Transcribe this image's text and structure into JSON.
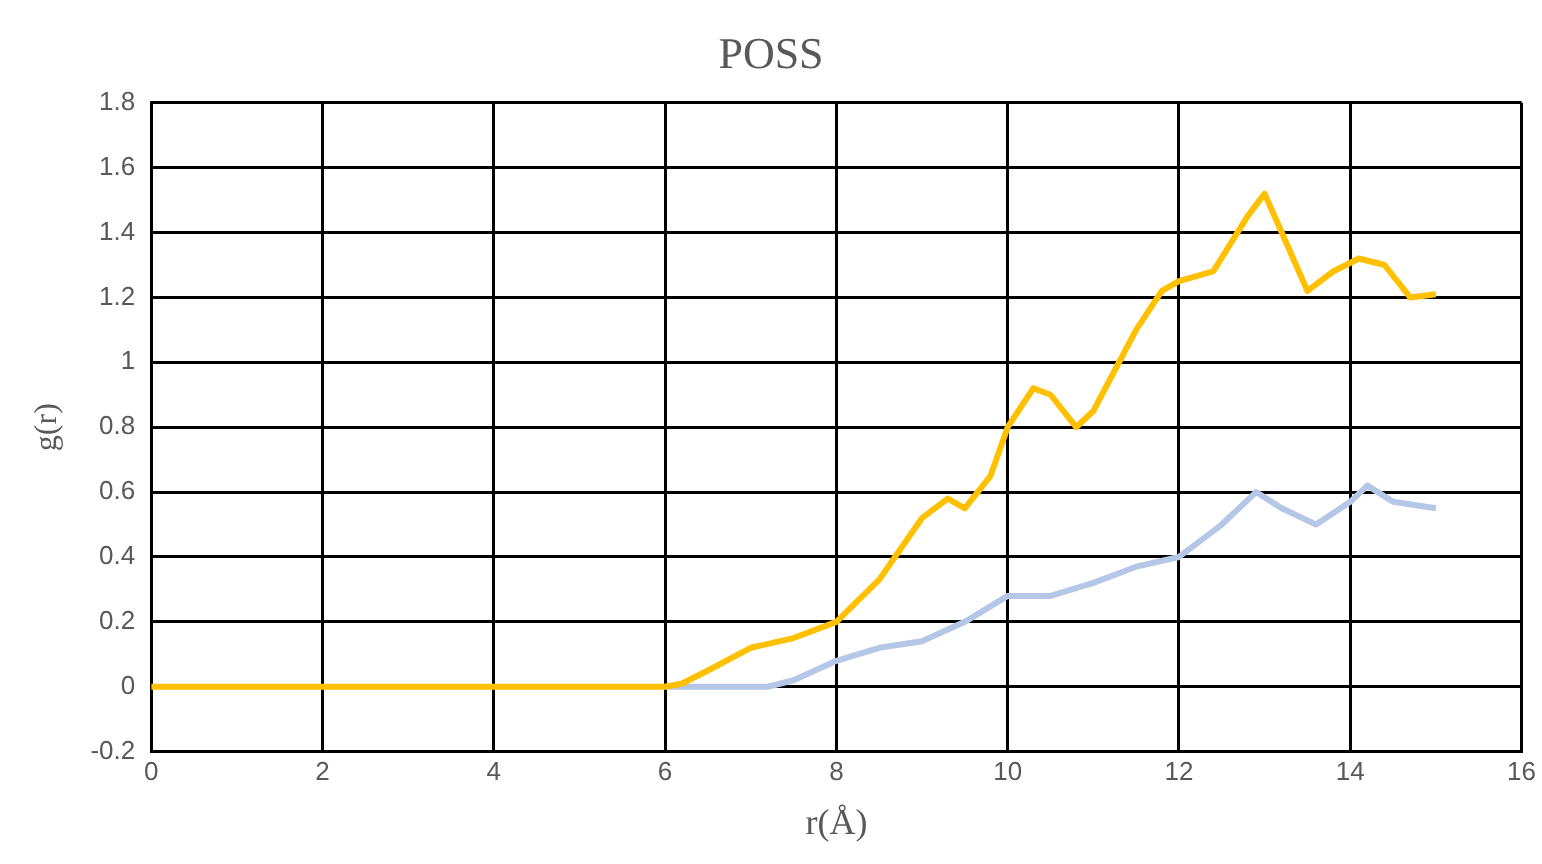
{
  "chart_data": {
    "type": "line",
    "title": "POSS",
    "xlabel": "r(Å)",
    "ylabel": "g(r)",
    "xlim": [
      0,
      16
    ],
    "xticks": [
      0,
      2,
      4,
      6,
      8,
      10,
      12,
      14,
      16
    ],
    "ylim": [
      -0.2,
      1.8
    ],
    "yticks": [
      -0.2,
      0,
      0.2,
      0.4,
      0.6,
      0.8,
      1,
      1.2,
      1.4,
      1.6,
      1.8
    ],
    "grid": true,
    "legend": false,
    "marker": "none",
    "series": [
      {
        "color": "#ffc000",
        "x": [
          0,
          2,
          4,
          6,
          6.2,
          6.5,
          7,
          7.5,
          8,
          8.5,
          9,
          9.3,
          9.5,
          9.8,
          10,
          10.3,
          10.5,
          10.8,
          11,
          11.5,
          11.8,
          12,
          12.4,
          12.8,
          13,
          13.2,
          13.5,
          13.8,
          14.1,
          14.4,
          14.7,
          15
        ],
        "values": [
          0,
          0,
          0,
          0,
          0.01,
          0.05,
          0.12,
          0.15,
          0.2,
          0.33,
          0.52,
          0.58,
          0.55,
          0.65,
          0.8,
          0.92,
          0.9,
          0.8,
          0.85,
          1.1,
          1.22,
          1.25,
          1.28,
          1.45,
          1.52,
          1.4,
          1.22,
          1.28,
          1.32,
          1.3,
          1.2,
          1.21
        ]
      },
      {
        "color": "#b4c7e7",
        "x": [
          6,
          7.2,
          7.5,
          8,
          8.5,
          9,
          9.5,
          10,
          10.5,
          11,
          11.5,
          12,
          12.5,
          12.9,
          13.2,
          13.6,
          14,
          14.2,
          14.5,
          15
        ],
        "values": [
          0,
          0,
          0.02,
          0.08,
          0.12,
          0.14,
          0.2,
          0.28,
          0.28,
          0.32,
          0.37,
          0.4,
          0.5,
          0.6,
          0.55,
          0.5,
          0.57,
          0.62,
          0.57,
          0.55
        ]
      }
    ]
  }
}
